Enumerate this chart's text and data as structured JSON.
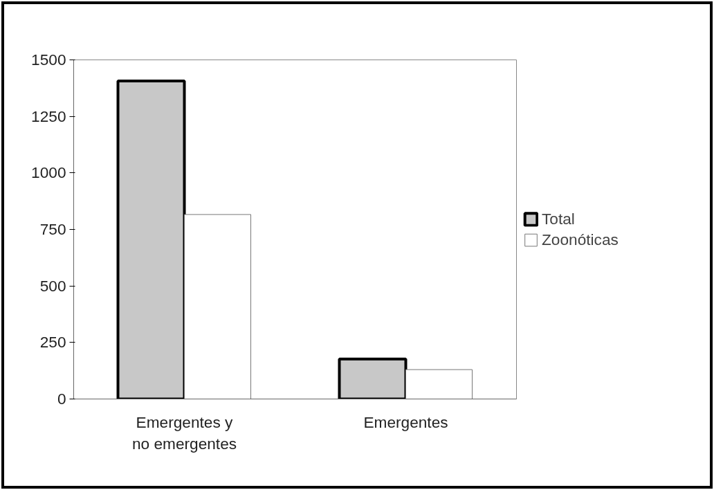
{
  "chart_data": {
    "type": "bar",
    "categories": [
      "Emergentes y\nno emergentes",
      "Emergentes"
    ],
    "series": [
      {
        "name": "Total",
        "color": "#c8c8c8",
        "values": [
          1407,
          177
        ]
      },
      {
        "name": "Zoonóticas",
        "color": "#ffffff",
        "values": [
          816,
          130
        ]
      }
    ],
    "ylim": [
      0,
      1500
    ],
    "yticks": [
      0,
      250,
      500,
      750,
      1000,
      1250,
      1500
    ],
    "grid": false,
    "legend": "right"
  }
}
